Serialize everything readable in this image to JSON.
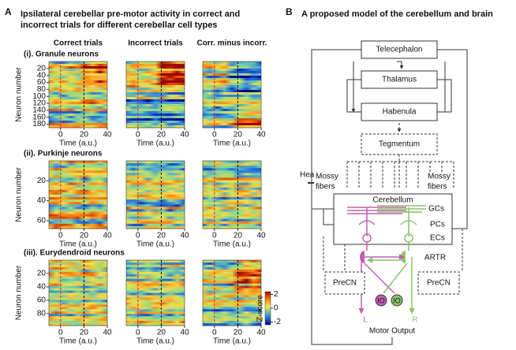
{
  "panel_a": {
    "letter": "A",
    "title_lines": [
      "Ipsilateral cerebellar pre-motor activity in correct and",
      "incorrect trials for different cerebellar cell types"
    ],
    "columns": [
      "Correct trials",
      "Incorrect trials",
      "Corr. minus incorr."
    ],
    "ylabel": "Neuron number",
    "xlabel": "Time (a.u.)",
    "xlim": [
      -10,
      40
    ],
    "xticks": [
      0,
      20,
      40
    ],
    "rows": [
      {
        "label": "(i). Granule neurons",
        "ylim": [
          0,
          190
        ],
        "yticks": [
          20,
          40,
          60,
          80,
          100,
          120,
          140,
          160,
          180
        ]
      },
      {
        "label": "(ii). Purkinje neurons",
        "ylim": [
          0,
          68
        ],
        "yticks": [
          20,
          40,
          60
        ]
      },
      {
        "label": "(iii). Eurydendroid neurons",
        "ylim": [
          0,
          98
        ],
        "yticks": [
          20,
          40,
          60,
          80
        ]
      }
    ],
    "colorbar": {
      "label": "Z-score",
      "lim": [
        -2.4,
        2.4
      ],
      "ticks": [
        2,
        0,
        -2
      ]
    }
  },
  "panel_b": {
    "letter": "B",
    "title": "A proposed model of the cerebellum and brain",
    "nodes": {
      "telecephalon": "Telecephalon",
      "thalamus": "Thalamus",
      "habenula": "Habenula",
      "tegmentum": "Tegmentum",
      "mossy_left": [
        "Mossy",
        "fibers"
      ],
      "mossy_right": [
        "Mossy",
        "fibers"
      ],
      "cerebellum": "Cerebellum",
      "gcs": "GCs",
      "pcs": "PCs",
      "ecs": "ECs",
      "artr": "ARTR",
      "precn_left": "PreCN",
      "precn_right": "PreCN",
      "io_left": "IO",
      "io_right": "IO",
      "left": "L",
      "right": "R",
      "motor_output": "Motor Output",
      "heat": "Heat"
    }
  }
}
